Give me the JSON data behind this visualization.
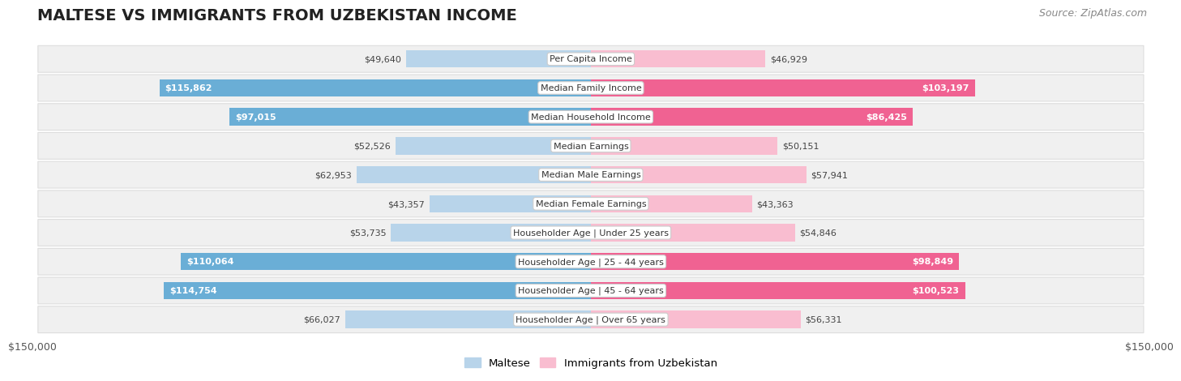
{
  "title": "MALTESE VS IMMIGRANTS FROM UZBEKISTAN INCOME",
  "source": "Source: ZipAtlas.com",
  "categories": [
    "Per Capita Income",
    "Median Family Income",
    "Median Household Income",
    "Median Earnings",
    "Median Male Earnings",
    "Median Female Earnings",
    "Householder Age | Under 25 years",
    "Householder Age | 25 - 44 years",
    "Householder Age | 45 - 64 years",
    "Householder Age | Over 65 years"
  ],
  "maltese_values": [
    49640,
    115862,
    97015,
    52526,
    62953,
    43357,
    53735,
    110064,
    114754,
    66027
  ],
  "uzbekistan_values": [
    46929,
    103197,
    86425,
    50151,
    57941,
    43363,
    54846,
    98849,
    100523,
    56331
  ],
  "maltese_labels": [
    "$49,640",
    "$115,862",
    "$97,015",
    "$52,526",
    "$62,953",
    "$43,357",
    "$53,735",
    "$110,064",
    "$114,754",
    "$66,027"
  ],
  "uzbekistan_labels": [
    "$46,929",
    "$103,197",
    "$86,425",
    "$50,151",
    "$57,941",
    "$43,363",
    "$54,846",
    "$98,849",
    "$100,523",
    "$56,331"
  ],
  "maltese_color_light": "#b8d4ea",
  "maltese_color_dark": "#6aaed6",
  "uzbekistan_color_light": "#f9bdd0",
  "uzbekistan_color_dark": "#f06292",
  "inside_threshold": 80000,
  "max_value": 150000,
  "bar_height": 0.6,
  "row_bg_color": "#f0f0f0",
  "row_bg_edge_color": "#dddddd",
  "legend_maltese": "Maltese",
  "legend_uzbekistan": "Immigrants from Uzbekistan",
  "xlabel_left": "$150,000",
  "xlabel_right": "$150,000",
  "title_fontsize": 14,
  "source_fontsize": 9,
  "label_fontsize": 8,
  "cat_fontsize": 8
}
